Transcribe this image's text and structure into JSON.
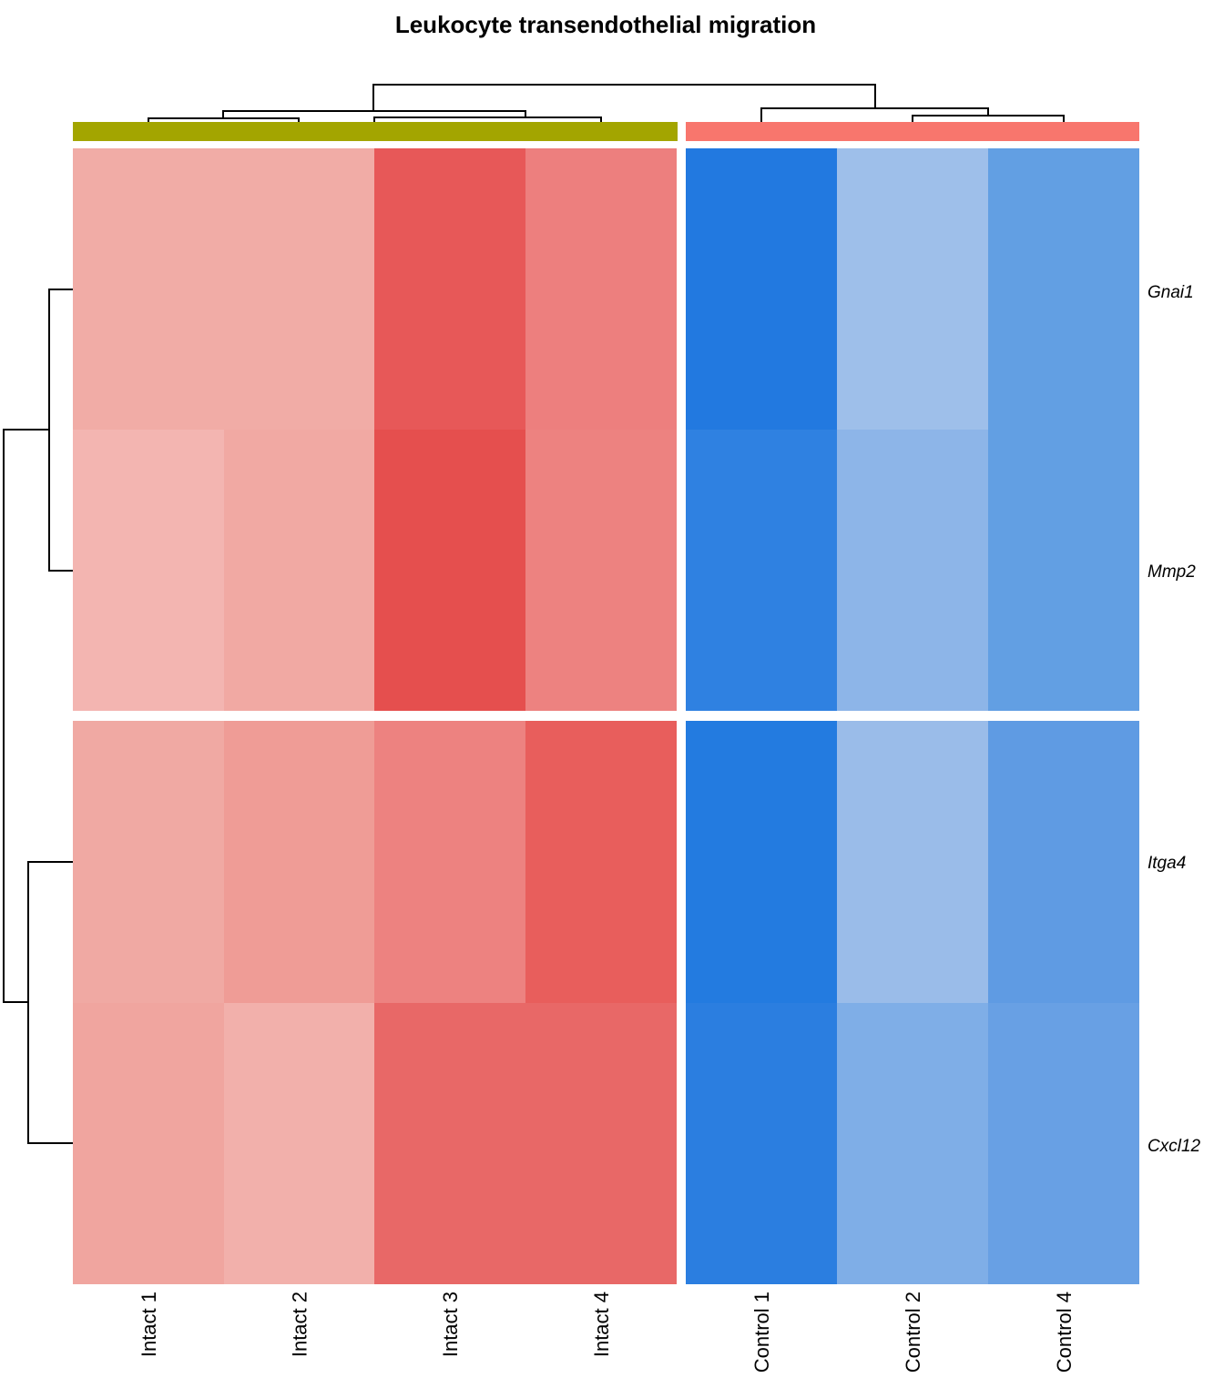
{
  "chart_data": {
    "type": "heatmap",
    "title": "Leukocyte transendothelial migration",
    "columns": [
      "Intact 1",
      "Intact 2",
      "Intact 3",
      "Intact 4",
      "Control 1",
      "Control 2",
      "Control 4"
    ],
    "column_groups": [
      {
        "members": [
          "Intact 1",
          "Intact 2",
          "Intact 3",
          "Intact 4"
        ],
        "color": "#A3A500"
      },
      {
        "members": [
          "Control 1",
          "Control 2",
          "Control 4"
        ],
        "color": "#F8766D"
      }
    ],
    "rows": [
      "Gnai1",
      "Mmp2",
      "Itga4",
      "Cxcl12"
    ],
    "row_groups": [
      [
        "Gnai1",
        "Mmp2"
      ],
      [
        "Itga4",
        "Cxcl12"
      ]
    ],
    "cell_colors": [
      [
        "#F1ACA6",
        "#F1ACA6",
        "#E75858",
        "#ED7F7E",
        "#2279E0",
        "#9EBFEA",
        "#629FE3"
      ],
      [
        "#F3B5B1",
        "#F1A9A3",
        "#E54F4E",
        "#ED8280",
        "#2F81E1",
        "#8DB5E8",
        "#629FE3"
      ],
      [
        "#F0A9A3",
        "#EF9C96",
        "#ED8280",
        "#E85E5C",
        "#237BE0",
        "#9ABCE9",
        "#5F9BE3"
      ],
      [
        "#F0A59F",
        "#F2B0AB",
        "#E86867",
        "#E86867",
        "#2B7EE0",
        "#7FAEE7",
        "#68A0E4"
      ]
    ],
    "color_scale": {
      "low": "#2279E0",
      "high": "#E54F4E"
    },
    "column_dendrogram": "((Intact 1,Intact 2),(Intact 3,Intact 4)),(Control 1,(Control 2,Control 4))",
    "row_dendrogram": "((Gnai1,Mmp2),(Itga4,Cxcl12))"
  }
}
